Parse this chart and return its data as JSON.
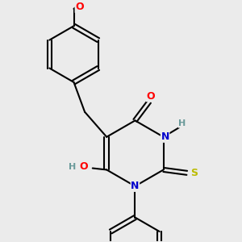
{
  "bg_color": "#ebebeb",
  "bond_color": "#000000",
  "atom_colors": {
    "O": "#ff0000",
    "N": "#0000cc",
    "S": "#bbbb00",
    "H": "#6a9a9a",
    "C": "#000000"
  }
}
